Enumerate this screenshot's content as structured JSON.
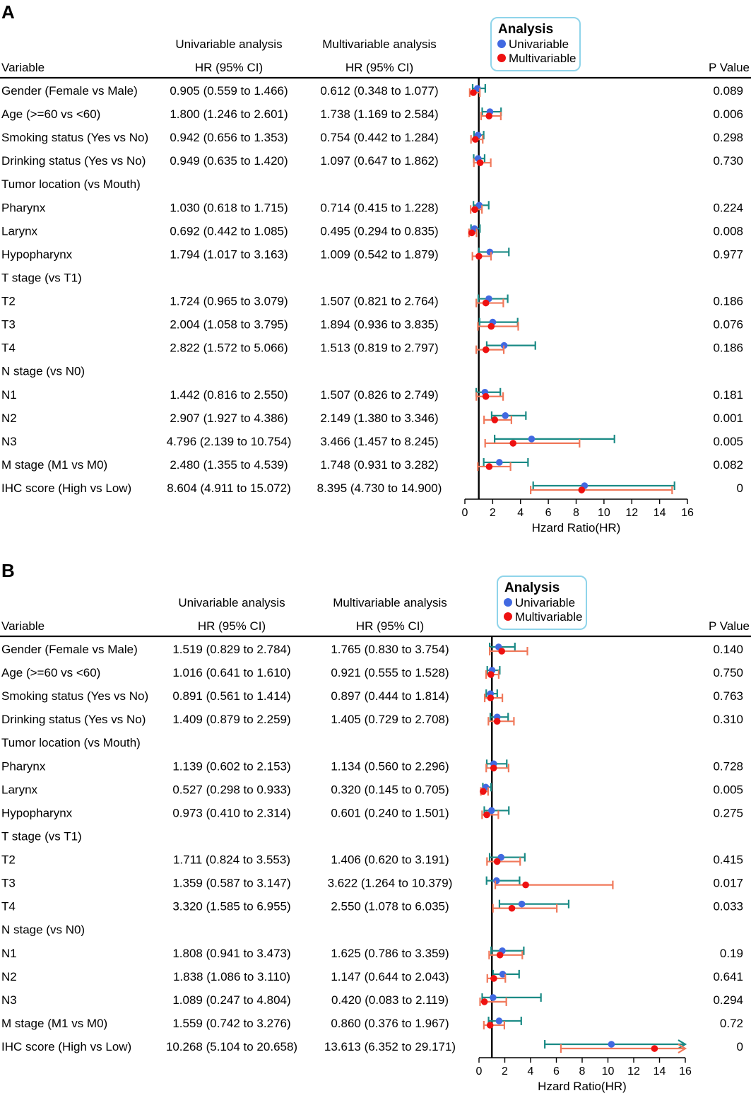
{
  "chart_data": [
    {
      "type": "forest",
      "panel_label": "A",
      "headers": {
        "variable": "Variable",
        "uni_top": "Univariable analysis",
        "uni_sub": "HR (95% CI)",
        "multi_top": "Multivariable analysis",
        "multi_sub": "HR (95% CI)",
        "pvalue": "P Value"
      },
      "legend": {
        "title": "Analysis",
        "items": [
          {
            "label": "Univariable",
            "color": "#4169e1"
          },
          {
            "label": "Multivariable",
            "color": "#ee1111"
          }
        ]
      },
      "series_colors": {
        "uni_ci": "#1a8a85",
        "multi_ci": "#f0785a",
        "uni_point": "#4169e1",
        "multi_point": "#ee1111"
      },
      "xlabel": "Hzard Ratio(HR)",
      "xlim": [
        0,
        16
      ],
      "xticks": [
        "0",
        "2",
        "4",
        "6",
        "8",
        "10",
        "12",
        "14",
        "16"
      ],
      "ref_line": 1,
      "rows": [
        {
          "label": "Gender (Female vs Male)",
          "uni_text": "0.905 (0.559 to 1.466)",
          "multi_text": "0.612 (0.348 to 1.077)",
          "p": "0.089",
          "uni": [
            0.905,
            0.559,
            1.466
          ],
          "multi": [
            0.612,
            0.348,
            1.077
          ]
        },
        {
          "label": "Age (>=60 vs <60)",
          "uni_text": "1.800 (1.246 to 2.601)",
          "multi_text": "1.738 (1.169 to 2.584)",
          "p": "0.006",
          "uni": [
            1.8,
            1.246,
            2.601
          ],
          "multi": [
            1.738,
            1.169,
            2.584
          ]
        },
        {
          "label": "Smoking status (Yes vs No)",
          "uni_text": "0.942 (0.656 to 1.353)",
          "multi_text": "0.754 (0.442 to 1.284)",
          "p": "0.298",
          "uni": [
            0.942,
            0.656,
            1.353
          ],
          "multi": [
            0.754,
            0.442,
            1.284
          ]
        },
        {
          "label": "Drinking status (Yes vs No)",
          "uni_text": "0.949 (0.635 to 1.420)",
          "multi_text": "1.097 (0.647 to 1.862)",
          "p": "0.730",
          "uni": [
            0.949,
            0.635,
            1.42
          ],
          "multi": [
            1.097,
            0.647,
            1.862
          ]
        },
        {
          "label": "Tumor location (vs Mouth)"
        },
        {
          "label": " Pharynx",
          "uni_text": "1.030 (0.618 to 1.715)",
          "multi_text": "0.714 (0.415 to 1.228)",
          "p": "0.224",
          "uni": [
            1.03,
            0.618,
            1.715
          ],
          "multi": [
            0.714,
            0.415,
            1.228
          ]
        },
        {
          "label": " Larynx",
          "uni_text": "0.692 (0.442 to 1.085)",
          "multi_text": "0.495 (0.294 to 0.835)",
          "p": "0.008",
          "uni": [
            0.692,
            0.442,
            1.085
          ],
          "multi": [
            0.495,
            0.294,
            0.835
          ]
        },
        {
          "label": " Hypopharynx",
          "uni_text": "1.794 (1.017 to 3.163)",
          "multi_text": "1.009 (0.542 to 1.879)",
          "p": "0.977",
          "uni": [
            1.794,
            1.017,
            3.163
          ],
          "multi": [
            1.009,
            0.542,
            1.879
          ]
        },
        {
          "label": "T stage (vs T1)"
        },
        {
          "label": " T2",
          "uni_text": "1.724 (0.965 to 3.079)",
          "multi_text": "1.507 (0.821 to 2.764)",
          "p": "0.186",
          "uni": [
            1.724,
            0.965,
            3.079
          ],
          "multi": [
            1.507,
            0.821,
            2.764
          ]
        },
        {
          "label": " T3",
          "uni_text": "2.004 (1.058 to 3.795)",
          "multi_text": "1.894 (0.936 to 3.835)",
          "p": "0.076",
          "uni": [
            2.004,
            1.058,
            3.795
          ],
          "multi": [
            1.894,
            0.936,
            3.835
          ]
        },
        {
          "label": " T4",
          "uni_text": "2.822 (1.572 to 5.066)",
          "multi_text": "1.513 (0.819 to 2.797)",
          "p": "0.186",
          "uni": [
            2.822,
            1.572,
            5.066
          ],
          "multi": [
            1.513,
            0.819,
            2.797
          ]
        },
        {
          "label": "N stage (vs N0)"
        },
        {
          "label": " N1",
          "uni_text": "1.442 (0.816 to 2.550)",
          "multi_text": "1.507 (0.826 to 2.749)",
          "p": "0.181",
          "uni": [
            1.442,
            0.816,
            2.55
          ],
          "multi": [
            1.507,
            0.826,
            2.749
          ]
        },
        {
          "label": " N2",
          "uni_text": "2.907 (1.927 to 4.386)",
          "multi_text": "2.149 (1.380 to 3.346)",
          "p": "0.001",
          "uni": [
            2.907,
            1.927,
            4.386
          ],
          "multi": [
            2.149,
            1.38,
            3.346
          ]
        },
        {
          "label": " N3",
          "uni_text": "4.796 (2.139 to 10.754)",
          "multi_text": "3.466 (1.457 to 8.245)",
          "p": "0.005",
          "uni": [
            4.796,
            2.139,
            10.754
          ],
          "multi": [
            3.466,
            1.457,
            8.245
          ]
        },
        {
          "label": "M stage (M1 vs M0)",
          "uni_text": "2.480 (1.355 to 4.539)",
          "multi_text": "1.748 (0.931 to 3.282)",
          "p": "0.082",
          "uni": [
            2.48,
            1.355,
            4.539
          ],
          "multi": [
            1.748,
            0.931,
            3.282
          ]
        },
        {
          "label": "IHC score (High vs Low)",
          "uni_text": "8.604 (4.911 to 15.072)",
          "multi_text": "8.395 (4.730 to 14.900)",
          "p": "0",
          "uni": [
            8.604,
            4.911,
            15.072
          ],
          "multi": [
            8.395,
            4.73,
            14.9
          ]
        }
      ]
    },
    {
      "type": "forest",
      "panel_label": "B",
      "headers": {
        "variable": "Variable",
        "uni_top": "Univariable analysis",
        "uni_sub": "HR (95% CI)",
        "multi_top": "Multivariable analysis",
        "multi_sub": "HR (95% CI)",
        "pvalue": "P Value"
      },
      "legend": {
        "title": "Analysis",
        "items": [
          {
            "label": "Univariable",
            "color": "#4169e1"
          },
          {
            "label": "Multivariable",
            "color": "#ee1111"
          }
        ]
      },
      "series_colors": {
        "uni_ci": "#1a8a85",
        "multi_ci": "#f0785a",
        "uni_point": "#4169e1",
        "multi_point": "#ee1111"
      },
      "xlabel": "Hzard Ratio(HR)",
      "xlim": [
        0,
        16
      ],
      "xticks": [
        "0",
        "2",
        "4",
        "6",
        "8",
        "10",
        "12",
        "14",
        "16"
      ],
      "ref_line": 1,
      "rows": [
        {
          "label": "Gender (Female vs Male)",
          "uni_text": "1.519 (0.829 to 2.784)",
          "multi_text": "1.765 (0.830 to 3.754)",
          "p": "0.140",
          "uni": [
            1.519,
            0.829,
            2.784
          ],
          "multi": [
            1.765,
            0.83,
            3.754
          ]
        },
        {
          "label": "Age (>=60 vs <60)",
          "uni_text": "1.016 (0.641 to 1.610)",
          "multi_text": "0.921 (0.555 to 1.528)",
          "p": "0.750",
          "uni": [
            1.016,
            0.641,
            1.61
          ],
          "multi": [
            0.921,
            0.555,
            1.528
          ]
        },
        {
          "label": "Smoking status (Yes vs No)",
          "uni_text": "0.891 (0.561 to 1.414)",
          "multi_text": "0.897 (0.444 to 1.814)",
          "p": "0.763",
          "uni": [
            0.891,
            0.561,
            1.414
          ],
          "multi": [
            0.897,
            0.444,
            1.814
          ]
        },
        {
          "label": "Drinking status (Yes vs No)",
          "uni_text": "1.409 (0.879 to 2.259)",
          "multi_text": "1.405 (0.729 to 2.708)",
          "p": "0.310",
          "uni": [
            1.409,
            0.879,
            2.259
          ],
          "multi": [
            1.405,
            0.729,
            2.708
          ]
        },
        {
          "label": "Tumor location (vs Mouth)"
        },
        {
          "label": " Pharynx",
          "uni_text": "1.139 (0.602 to 2.153)",
          "multi_text": "1.134 (0.560 to 2.296)",
          "p": "0.728",
          "uni": [
            1.139,
            0.602,
            2.153
          ],
          "multi": [
            1.134,
            0.56,
            2.296
          ]
        },
        {
          "label": " Larynx",
          "uni_text": "0.527 (0.298 to 0.933)",
          "multi_text": "0.320 (0.145 to 0.705)",
          "p": "0.005",
          "uni": [
            0.527,
            0.298,
            0.933
          ],
          "multi": [
            0.32,
            0.145,
            0.705
          ]
        },
        {
          "label": " Hypopharynx",
          "uni_text": "0.973 (0.410 to 2.314)",
          "multi_text": "0.601 (0.240 to 1.501)",
          "p": "0.275",
          "uni": [
            0.973,
            0.41,
            2.314
          ],
          "multi": [
            0.601,
            0.24,
            1.501
          ]
        },
        {
          "label": "T stage (vs T1)"
        },
        {
          "label": " T2",
          "uni_text": "1.711 (0.824 to 3.553)",
          "multi_text": "1.406 (0.620 to 3.191)",
          "p": "0.415",
          "uni": [
            1.711,
            0.824,
            3.553
          ],
          "multi": [
            1.406,
            0.62,
            3.191
          ]
        },
        {
          "label": " T3",
          "uni_text": "1.359 (0.587 to 3.147)",
          "multi_text": "3.622 (1.264 to 10.379)",
          "p": "0.017",
          "uni": [
            1.359,
            0.587,
            3.147
          ],
          "multi": [
            3.622,
            1.264,
            10.379
          ]
        },
        {
          "label": " T4",
          "uni_text": "3.320 (1.585 to 6.955)",
          "multi_text": "2.550 (1.078 to 6.035)",
          "p": "0.033",
          "uni": [
            3.32,
            1.585,
            6.955
          ],
          "multi": [
            2.55,
            1.078,
            6.035
          ]
        },
        {
          "label": "N stage (vs N0)"
        },
        {
          "label": " N1",
          "uni_text": "1.808 (0.941 to 3.473)",
          "multi_text": "1.625 (0.786 to 3.359)",
          "p": "0.19",
          "uni": [
            1.808,
            0.941,
            3.473
          ],
          "multi": [
            1.625,
            0.786,
            3.359
          ]
        },
        {
          "label": " N2",
          "uni_text": "1.838 (1.086 to 3.110)",
          "multi_text": "1.147 (0.644 to 2.043)",
          "p": "0.641",
          "uni": [
            1.838,
            1.086,
            3.11
          ],
          "multi": [
            1.147,
            0.644,
            2.043
          ]
        },
        {
          "label": " N3",
          "uni_text": "1.089 (0.247 to 4.804)",
          "multi_text": "0.420 (0.083 to 2.119)",
          "p": "0.294",
          "uni": [
            1.089,
            0.247,
            4.804
          ],
          "multi": [
            0.42,
            0.083,
            2.119
          ]
        },
        {
          "label": "M stage (M1 vs M0)",
          "uni_text": "1.559 (0.742 to 3.276)",
          "multi_text": "0.860 (0.376 to 1.967)",
          "p": "0.72",
          "uni": [
            1.559,
            0.742,
            3.276
          ],
          "multi": [
            0.86,
            0.376,
            1.967
          ]
        },
        {
          "label": "IHC score (High vs Low)",
          "uni_text": "10.268 (5.104 to 20.658)",
          "multi_text": "13.613 (6.352 to 29.171)",
          "p": "0",
          "uni": [
            10.268,
            5.104,
            20.658
          ],
          "multi": [
            13.613,
            6.352,
            29.171
          ]
        }
      ]
    }
  ]
}
